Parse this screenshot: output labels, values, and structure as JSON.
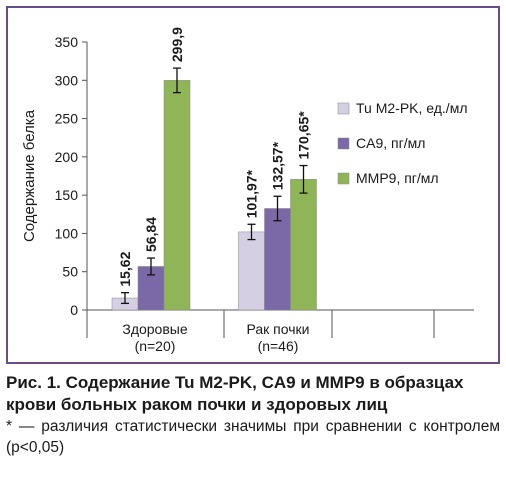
{
  "chart_data": {
    "type": "bar",
    "ylabel": "Содержание белка",
    "xlabel": "",
    "title": "",
    "ylim": [
      0,
      350
    ],
    "yticks": [
      0,
      50,
      100,
      150,
      200,
      250,
      300,
      350
    ],
    "ytick_labels": [
      "0",
      "50",
      "100",
      "150",
      "200",
      "250",
      "300",
      "350"
    ],
    "grid": false,
    "legend_position": "right",
    "categories": [
      {
        "line1": "Здоровые",
        "line2": "(n=20)"
      },
      {
        "line1": "Рак почки",
        "line2": "(n=46)"
      }
    ],
    "series": [
      {
        "name": "Tu M2-PK, ед./мл",
        "color": "#d4cfe3",
        "values": [
          15.62,
          101.97
        ],
        "labels": [
          "15,62",
          "101,97*"
        ],
        "errors": [
          7,
          10
        ]
      },
      {
        "name": "CA9, пг/мл",
        "color": "#7b68a6",
        "values": [
          56.84,
          132.57
        ],
        "labels": [
          "56,84",
          "132,57*"
        ],
        "errors": [
          11,
          16
        ]
      },
      {
        "name": "MMP9, пг/мл",
        "color": "#8fb558",
        "values": [
          299.9,
          170.65
        ],
        "labels": [
          "299,9",
          "170,65*"
        ],
        "errors": [
          16,
          18
        ]
      }
    ]
  },
  "caption": {
    "title": "Рис. 1. Содержание Tu M2-PK, CA9 и MMP9 в образцах крови больных раком почки и здоровых лиц",
    "note": "* — различия статистически значимы при сравнении с контролем (p<0,05)"
  }
}
